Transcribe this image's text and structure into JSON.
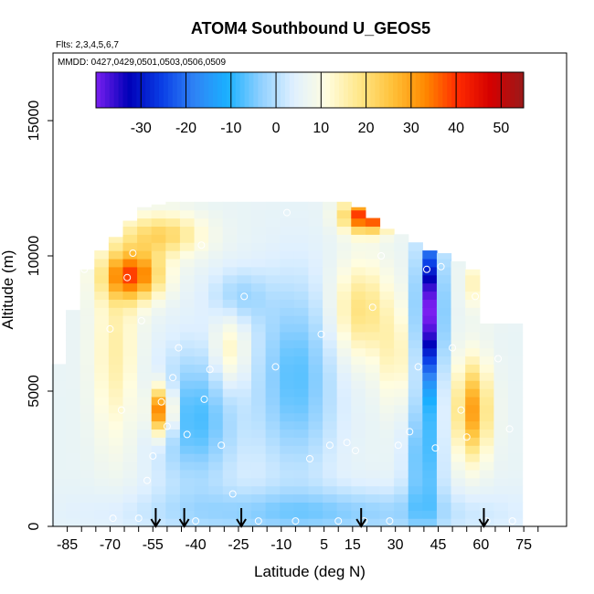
{
  "chart_data": {
    "type": "heatmap",
    "title": "ATOM4 Southbound U_GEOS5",
    "subtitle_flights": "Flts: 2,3,4,5,6,7",
    "subtitle_dates": "MMDD: 0427,0429,0501,0503,0506,0509",
    "xlabel": "Latitude (deg N)",
    "ylabel": "Altitude (m)",
    "xlim": [
      -90,
      90
    ],
    "ylim": [
      0,
      17500
    ],
    "x_tick_labels": [
      "-85",
      "-70",
      "-55",
      "-40",
      "-25",
      "-10",
      "5",
      "15",
      "30",
      "45",
      "60",
      "75"
    ],
    "y_ticks": [
      0,
      5000,
      10000,
      15000
    ],
    "colorbar": {
      "range": [
        -40,
        55
      ],
      "tick_values": [
        -30,
        -20,
        -10,
        0,
        10,
        20,
        30,
        40,
        50
      ],
      "colors": [
        "#7a1ff0",
        "#0000b8",
        "#0a3ee6",
        "#2f84f5",
        "#1ab0ff",
        "#8fd0ff",
        "#dff0ff",
        "#fffde0",
        "#ffe78a",
        "#ffc23a",
        "#ff8a00",
        "#ff2a00",
        "#d40000",
        "#9a1a1a"
      ]
    },
    "lat_columns": [
      -88,
      -83,
      -78,
      -73,
      -68,
      -63,
      -58,
      -53,
      -48,
      -43,
      -38,
      -33,
      -28,
      -23,
      -18,
      -13,
      -8,
      -3,
      2,
      7,
      12,
      17,
      22,
      27,
      32,
      37,
      42,
      47,
      52,
      57,
      62,
      67,
      72
    ],
    "col_top_altitude": [
      6000,
      8000,
      9500,
      10200,
      10700,
      11300,
      11800,
      11900,
      12000,
      12000,
      12000,
      12000,
      12000,
      12000,
      12000,
      12000,
      12000,
      12000,
      12000,
      12000,
      12000,
      11800,
      11400,
      11000,
      10800,
      10500,
      10200,
      10100,
      9800,
      9500,
      7500,
      7500,
      7500
    ],
    "arrows_lat": [
      -54,
      -44,
      -24,
      18,
      61
    ],
    "wind_features_note": "",
    "sample_points": [
      {
        "lat": -60,
        "alt": 300
      },
      {
        "lat": -57,
        "alt": 1700
      },
      {
        "lat": -55,
        "alt": 2600
      },
      {
        "lat": -52,
        "alt": 4600
      },
      {
        "lat": -50,
        "alt": 3700
      },
      {
        "lat": -48,
        "alt": 5500
      },
      {
        "lat": -46,
        "alt": 6600
      },
      {
        "lat": -43,
        "alt": 3400
      },
      {
        "lat": -40,
        "alt": 200
      },
      {
        "lat": -37,
        "alt": 4700
      },
      {
        "lat": -35,
        "alt": 5800
      },
      {
        "lat": -31,
        "alt": 3000
      },
      {
        "lat": -27,
        "alt": 1200
      },
      {
        "lat": -23,
        "alt": 8500
      },
      {
        "lat": -18,
        "alt": 200
      },
      {
        "lat": -12,
        "alt": 5900
      },
      {
        "lat": -8,
        "alt": 11600
      },
      {
        "lat": -5,
        "alt": 200
      },
      {
        "lat": 0,
        "alt": 2500
      },
      {
        "lat": 4,
        "alt": 7100
      },
      {
        "lat": 7,
        "alt": 3000
      },
      {
        "lat": 10,
        "alt": 200
      },
      {
        "lat": 13,
        "alt": 3100
      },
      {
        "lat": 16,
        "alt": 2800
      },
      {
        "lat": 19,
        "alt": 200
      },
      {
        "lat": 22,
        "alt": 8100
      },
      {
        "lat": 25,
        "alt": 10000
      },
      {
        "lat": 28,
        "alt": 200
      },
      {
        "lat": 31,
        "alt": 3000
      },
      {
        "lat": 35,
        "alt": 3500
      },
      {
        "lat": 38,
        "alt": 5900
      },
      {
        "lat": 41,
        "alt": 9500
      },
      {
        "lat": 44,
        "alt": 2900
      },
      {
        "lat": 46,
        "alt": 9600
      },
      {
        "lat": 50,
        "alt": 6600
      },
      {
        "lat": 53,
        "alt": 4300
      },
      {
        "lat": 55,
        "alt": 3300
      },
      {
        "lat": 58,
        "alt": 8500
      },
      {
        "lat": 62,
        "alt": 200
      },
      {
        "lat": 66,
        "alt": 6200
      },
      {
        "lat": 70,
        "alt": 3600
      },
      {
        "lat": 71,
        "alt": 200
      },
      {
        "lat": -66,
        "alt": 4300
      },
      {
        "lat": -69,
        "alt": 300
      },
      {
        "lat": -79,
        "alt": 9500
      },
      {
        "lat": -64,
        "alt": 9200
      },
      {
        "lat": -70,
        "alt": 7300
      },
      {
        "lat": -62,
        "alt": 10100
      },
      {
        "lat": -59,
        "alt": 7600
      },
      {
        "lat": -38,
        "alt": 10400
      }
    ]
  }
}
